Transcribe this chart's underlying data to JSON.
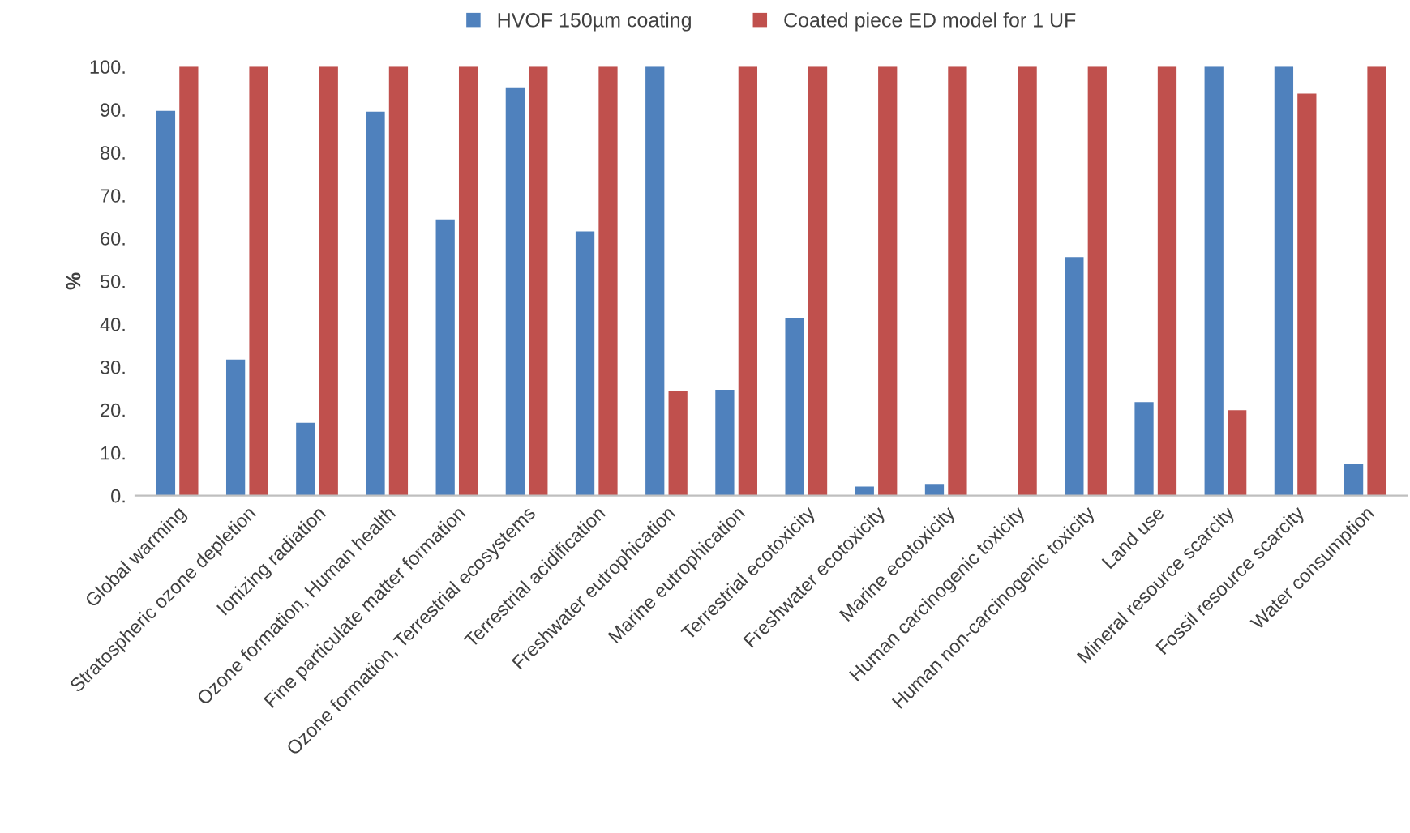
{
  "chart_data": {
    "type": "bar",
    "ylabel": "%",
    "categories": [
      "Global warming",
      "Stratospheric ozone depletion",
      "Ionizing radiation",
      "Ozone formation, Human health",
      "Fine particulate matter formation",
      "Ozone formation, Terrestrial ecosystems",
      "Terrestrial acidification",
      "Freshwater eutrophication",
      "Marine eutrophication",
      "Terrestrial ecotoxicity",
      "Freshwater ecotoxicity",
      "Marine ecotoxicity",
      "Human carcinogenic toxicity",
      "Human non-carcinogenic toxicity",
      "Land use",
      "Mineral resource scarcity",
      "Fossil resource scarcity",
      "Water consumption"
    ],
    "series": [
      {
        "name": "HVOF 150µm coating",
        "color": "#4f81bd",
        "values": [
          89.7,
          31.7,
          17,
          89.5,
          64.4,
          95.2,
          61.6,
          100,
          24.7,
          41.5,
          2.1,
          2.7,
          0,
          55.6,
          21.8,
          100,
          100,
          7.3
        ]
      },
      {
        "name": "Coated piece ED model for 1 UF",
        "color": "#c0504d",
        "values": [
          100,
          100,
          100,
          100,
          100,
          100,
          100,
          24.3,
          100,
          100,
          100,
          100,
          100,
          100,
          100,
          19.9,
          93.7,
          100
        ]
      }
    ],
    "ylim": [
      0,
      100
    ],
    "yticks": [
      {
        "value": 0,
        "label": "0."
      },
      {
        "value": 10,
        "label": "10."
      },
      {
        "value": 20,
        "label": "20."
      },
      {
        "value": 30,
        "label": "30."
      },
      {
        "value": 40,
        "label": "40."
      },
      {
        "value": 50,
        "label": "50."
      },
      {
        "value": 60,
        "label": "60."
      },
      {
        "value": 70,
        "label": "70."
      },
      {
        "value": 80,
        "label": "80."
      },
      {
        "value": 90,
        "label": "90."
      },
      {
        "value": 100,
        "label": "100."
      }
    ],
    "grid": false,
    "legend": "top"
  }
}
